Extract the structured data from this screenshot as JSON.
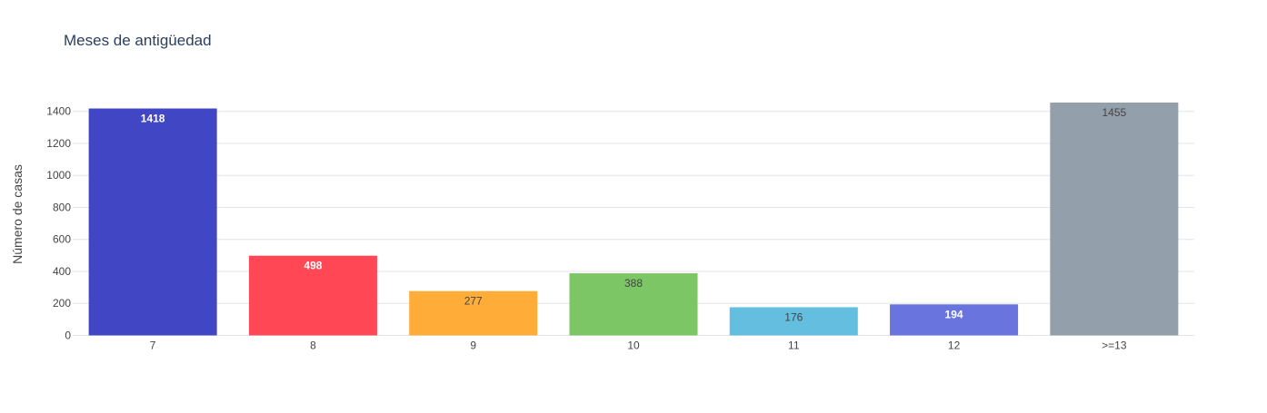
{
  "chart_data": {
    "type": "bar",
    "title": "Meses de antigüedad",
    "xlabel": "",
    "ylabel": "Número de casas",
    "categories": [
      "7",
      "8",
      "9",
      "10",
      "11",
      "12",
      ">=13"
    ],
    "values": [
      1418,
      498,
      277,
      388,
      176,
      194,
      1455
    ],
    "colors": [
      "#4147c4",
      "#ff4755",
      "#ffad38",
      "#7dc665",
      "#63bedf",
      "#6a74df",
      "#939fab"
    ],
    "label_colors": [
      "#ffffff",
      "#ffffff",
      "#444444",
      "#444444",
      "#444444",
      "#ffffff",
      "#444444"
    ],
    "ylim": [
      0,
      1455
    ],
    "yticks": [
      0,
      200,
      400,
      600,
      800,
      1000,
      1200,
      1400
    ],
    "grid": true,
    "legend": "none"
  }
}
